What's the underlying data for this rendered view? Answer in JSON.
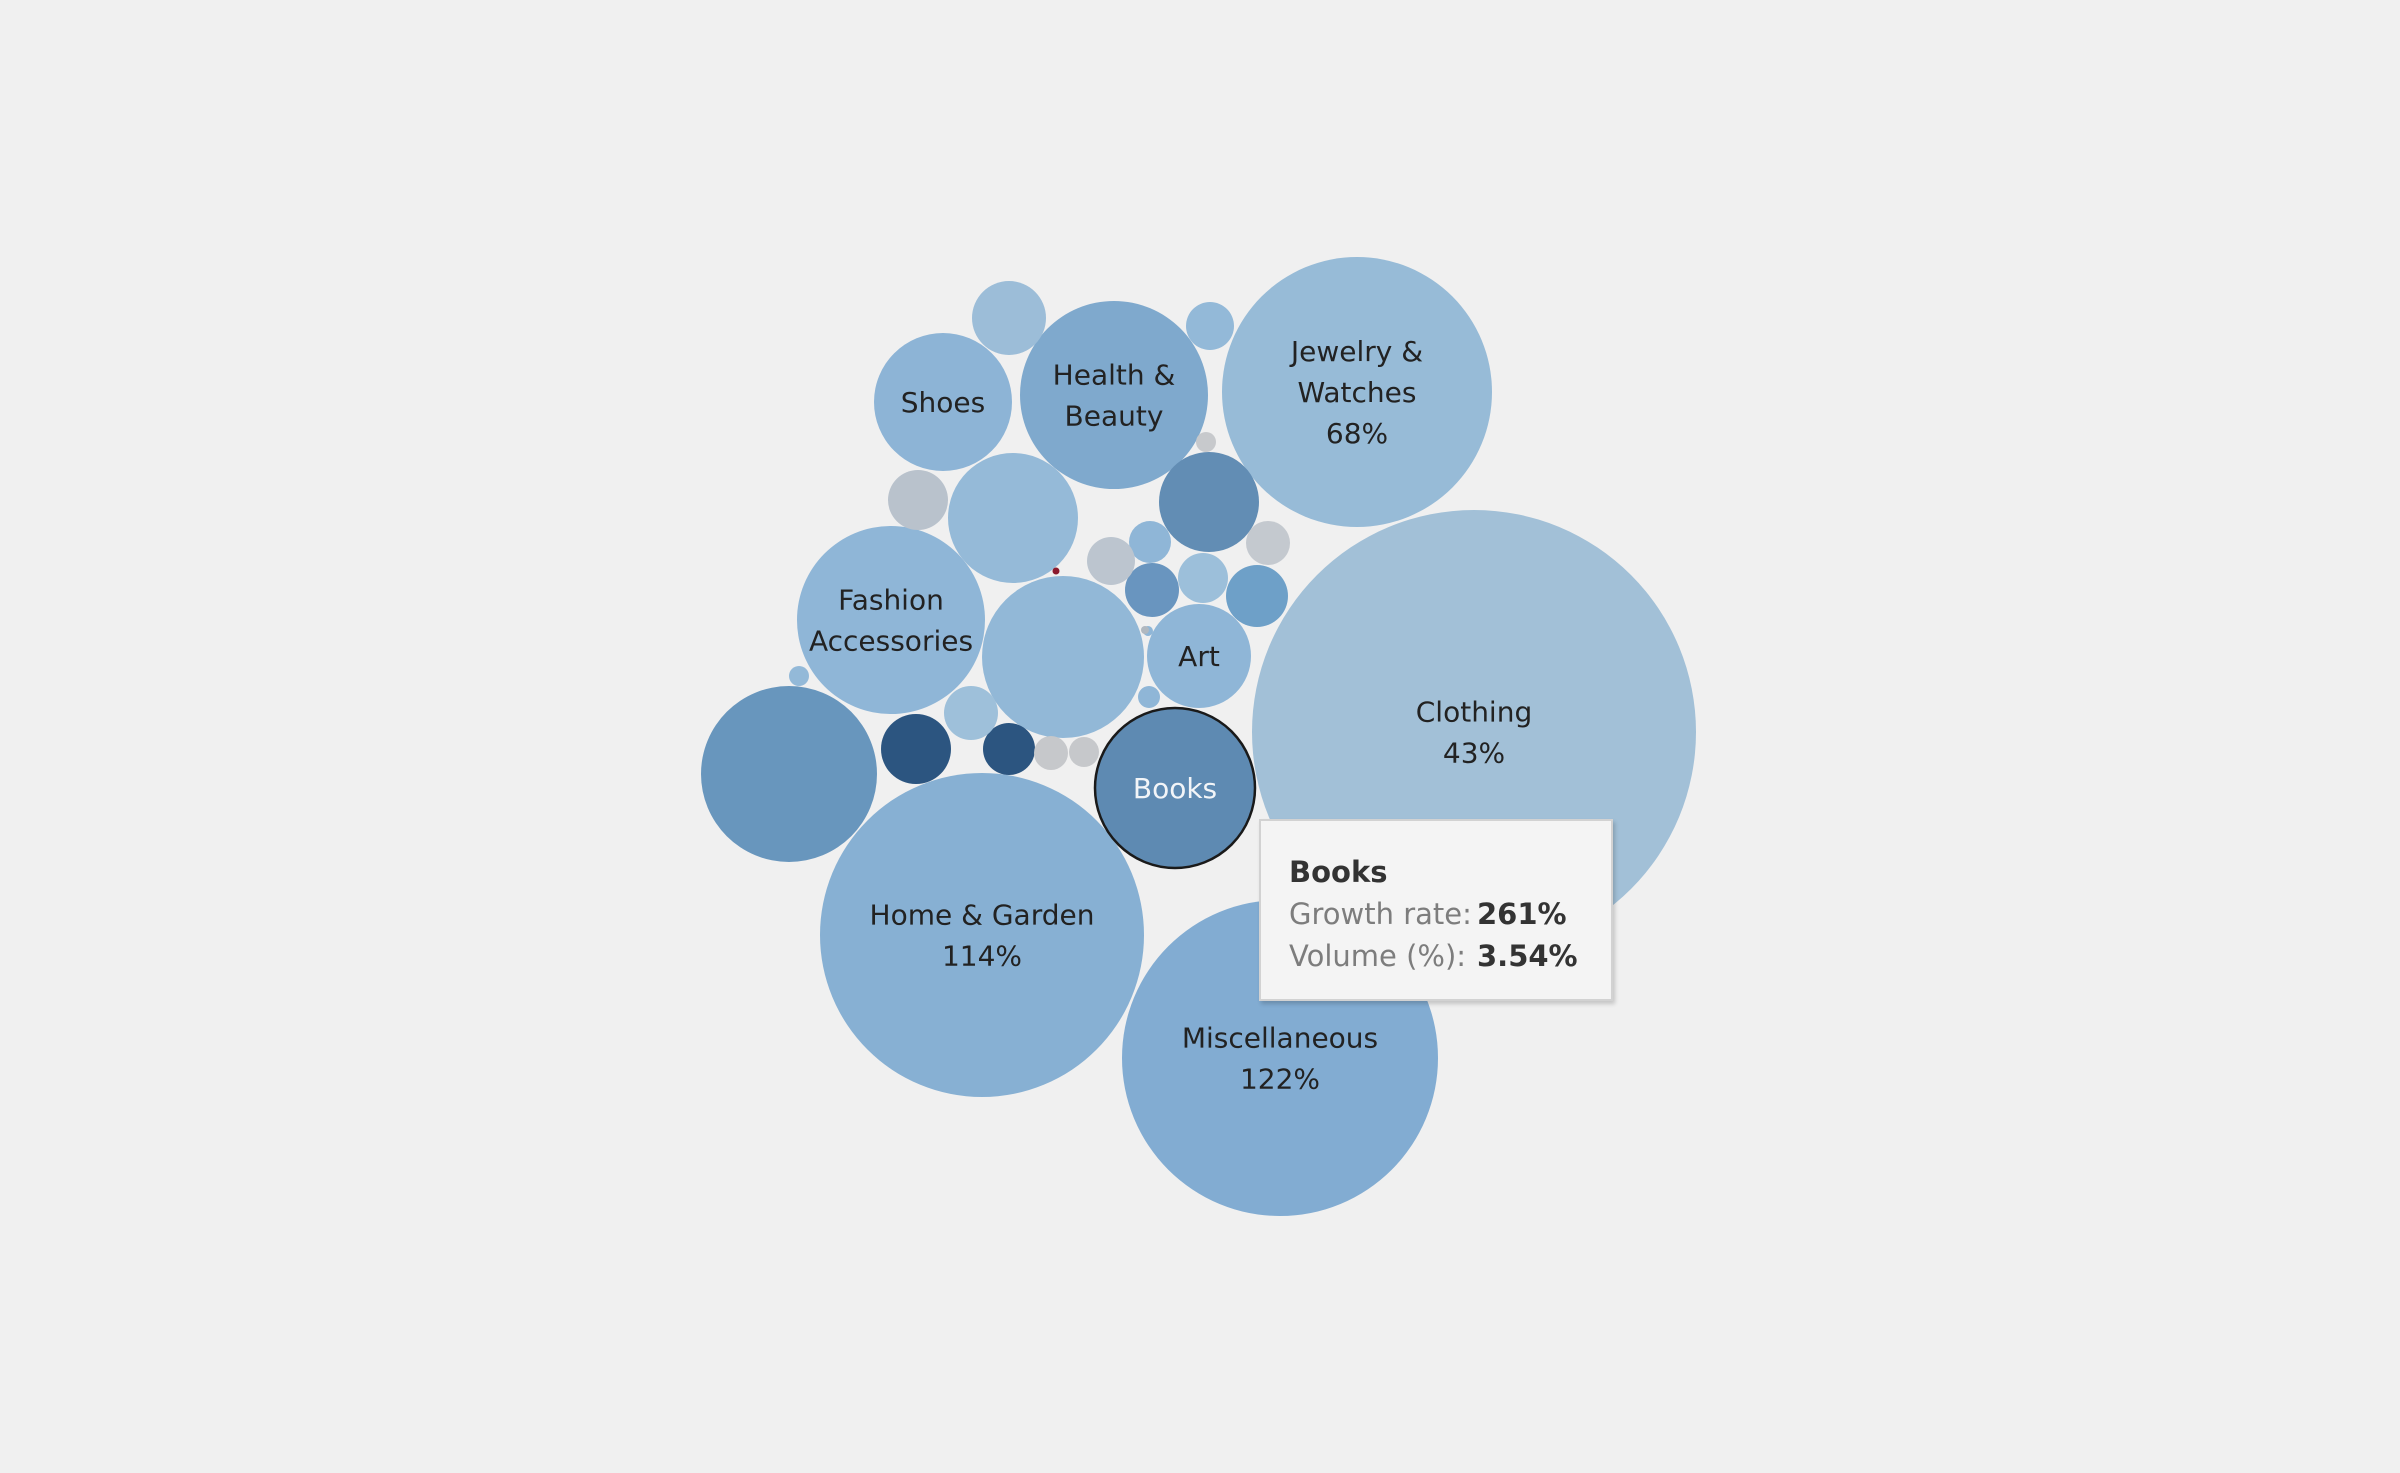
{
  "chart_data": {
    "type": "bubble",
    "bubbles": [
      {
        "label": "Clothing",
        "value": "43%",
        "color": "#a2c0d7"
      },
      {
        "label": "Jewelry & Watches",
        "value": "68%",
        "color": "#97bbd7"
      },
      {
        "label": "Home & Garden",
        "value": "114%",
        "color": "#87b0d3"
      },
      {
        "label": "Miscellaneous",
        "value": "122%",
        "color": "#82acd2"
      },
      {
        "label": "Books",
        "value": "",
        "color": "#5e8ab2",
        "highlighted": true
      },
      {
        "label": "Health & Beauty",
        "value": "",
        "color": "#7fa9cd"
      },
      {
        "label": "Fashion Accessories",
        "value": "",
        "color": "#8fb6d7"
      },
      {
        "label": "Shoes",
        "value": "",
        "color": "#8db4d6"
      },
      {
        "label": "Art",
        "value": "",
        "color": "#8fb6d7"
      },
      {
        "label": "",
        "value": "",
        "color": "#6896bd"
      },
      {
        "label": "",
        "value": "",
        "color": "#92b8d7"
      },
      {
        "label": "",
        "value": "",
        "color": "#95bad8"
      },
      {
        "label": "",
        "value": "",
        "color": "#628db4"
      },
      {
        "label": "",
        "value": "",
        "color": "#2c5580"
      },
      {
        "label": "",
        "value": "",
        "color": "#2c5580"
      },
      {
        "label": "",
        "value": "",
        "color": "#6ea0c8"
      },
      {
        "label": "",
        "value": "",
        "color": "#6995bf"
      },
      {
        "label": "",
        "value": "",
        "color": "#9cbdd8"
      },
      {
        "label": "",
        "value": "",
        "color": "#93b9d8"
      },
      {
        "label": "",
        "value": "",
        "color": "#9cbfda"
      },
      {
        "label": "",
        "value": "",
        "color": "#8fb6d7"
      },
      {
        "label": "",
        "value": "",
        "color": "#9ec0da"
      },
      {
        "label": "",
        "value": "",
        "color": "#bcc5cf"
      },
      {
        "label": "",
        "value": "",
        "color": "#b9c2cc"
      },
      {
        "label": "",
        "value": "",
        "color": "#c4c9cf"
      },
      {
        "label": "",
        "value": "",
        "color": "#c6c8cb"
      },
      {
        "label": "",
        "value": "",
        "color": "#c6c8cb"
      },
      {
        "label": "",
        "value": "",
        "color": "#c7c9cc"
      },
      {
        "label": "",
        "value": "",
        "color": "#8fb6d7"
      },
      {
        "label": "",
        "value": "",
        "color": "#93b9d8"
      },
      {
        "label": "",
        "value": "",
        "color": "#8fb6d7"
      },
      {
        "label": "",
        "value": "",
        "color": "#b0b8c0"
      },
      {
        "label": "",
        "value": "",
        "color": "#8b1a2e"
      }
    ]
  },
  "tooltip": {
    "title": "Books",
    "growth_label": "Growth rate:",
    "growth_value": "261%",
    "volume_label": "Volume (%):",
    "volume_value": "3.54%"
  }
}
